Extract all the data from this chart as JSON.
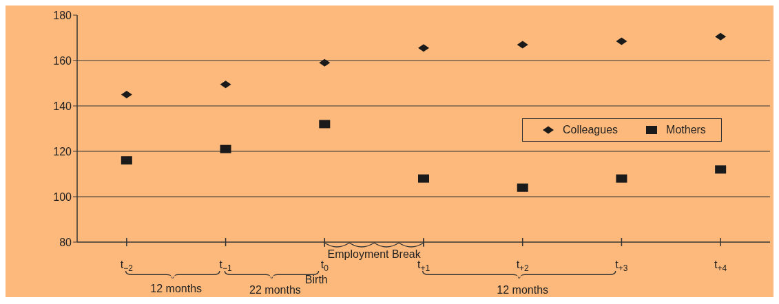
{
  "chart_data": {
    "type": "scatter",
    "categories": [
      "t$_{−2}$",
      "t$_{−1}$",
      "t$_{0}$",
      "t$_{+1}$",
      "t$_{+2}$",
      "t$_{+3}$",
      "t$_{+4}$"
    ],
    "series": [
      {
        "name": "Colleagues",
        "color": "#1a1a1a",
        "marker": "diamond",
        "values": [
          145,
          149.5,
          159,
          165.5,
          167,
          168.5,
          170.5
        ]
      },
      {
        "name": "Mothers",
        "color": "#1a1a1a",
        "marker": "square",
        "values": [
          116,
          121,
          132,
          108,
          104,
          108,
          112
        ]
      }
    ],
    "ylim": [
      80,
      180
    ],
    "yticks": [
      80,
      100,
      120,
      140,
      160,
      180
    ],
    "grid": "y",
    "legend": "right",
    "annotations": [
      "12 months",
      "22 months",
      "Birth",
      "Employment Break",
      "12 months"
    ]
  }
}
